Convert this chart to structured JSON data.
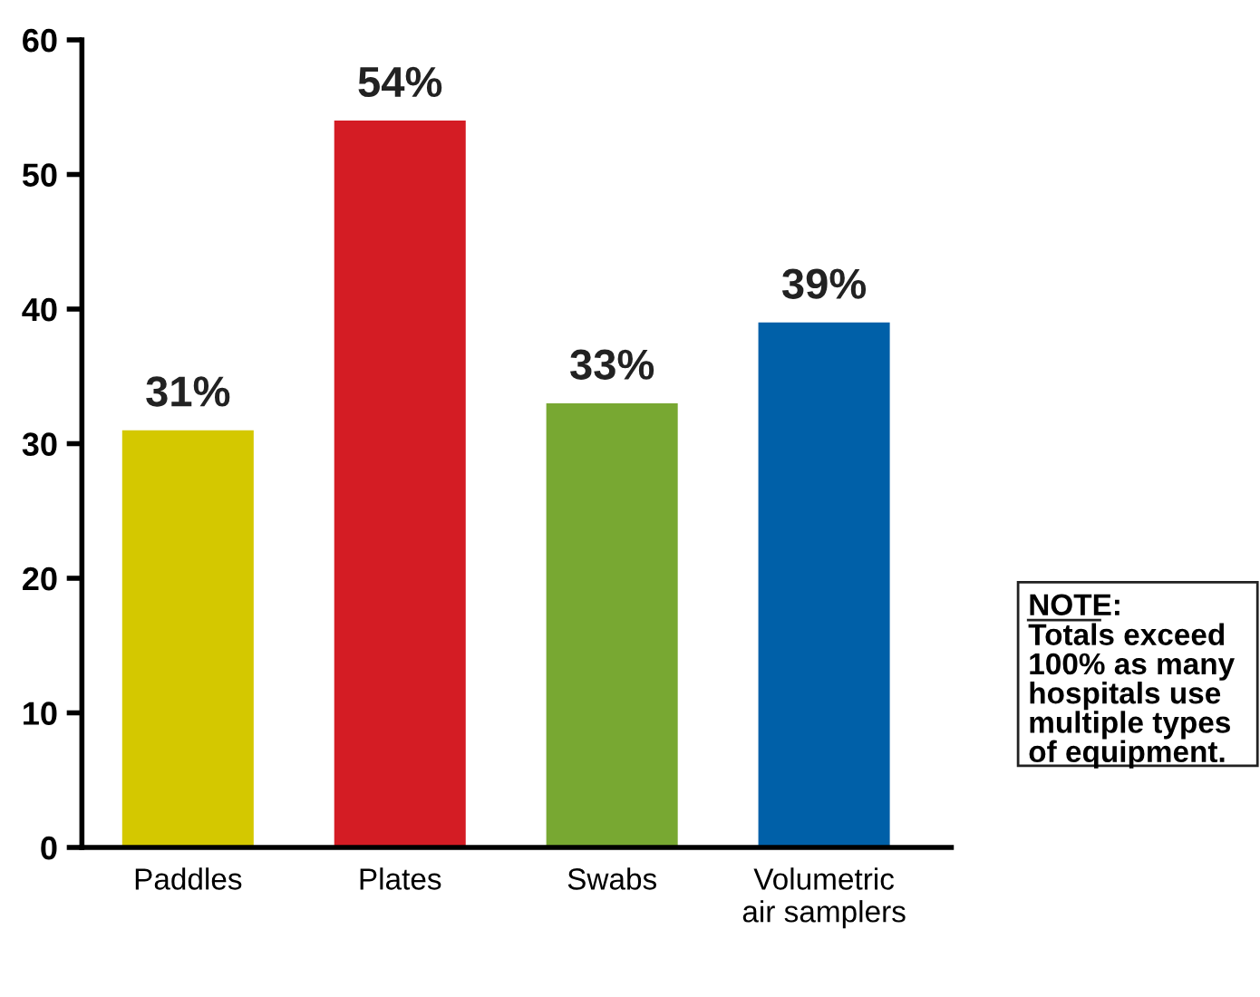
{
  "chart_data": {
    "type": "bar",
    "categories": [
      "Paddles",
      "Plates",
      "Swabs",
      "Volumetric\nair samplers"
    ],
    "values": [
      31,
      54,
      33,
      39
    ],
    "value_labels": [
      "31%",
      "54%",
      "33%",
      "39%"
    ],
    "colors": [
      "#d4c800",
      "#d41c24",
      "#78a832",
      "#0060a8"
    ],
    "ylim": [
      0,
      60
    ],
    "yticks": [
      0,
      10,
      20,
      30,
      40,
      50,
      60
    ],
    "grid": false,
    "legend": false,
    "annotations": [
      "NOTE:",
      "Totals exceed\n100% as many\nhospitals use\nmultiple types\nof equipment."
    ]
  }
}
